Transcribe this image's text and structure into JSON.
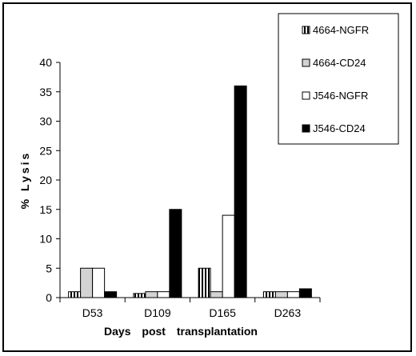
{
  "chart_data": {
    "type": "bar",
    "categories": [
      "D53",
      "D109",
      "D165",
      "D263"
    ],
    "series": [
      {
        "name": "4664-NGFR",
        "values": [
          1,
          0.7,
          5,
          1
        ],
        "style": "striped"
      },
      {
        "name": "4664-CD24",
        "values": [
          5,
          1,
          1,
          1
        ],
        "style": "lightgray"
      },
      {
        "name": "J546-NGFR",
        "values": [
          5,
          1,
          14,
          1
        ],
        "style": "white"
      },
      {
        "name": "J546-CD24",
        "values": [
          1,
          15,
          36,
          1.5
        ],
        "style": "black"
      }
    ],
    "xlabel": "Days post transplantation",
    "ylabel": "% Lysis",
    "ylim": [
      0,
      40
    ],
    "yticks": [
      0,
      5,
      10,
      15,
      20,
      25,
      30,
      35,
      40
    ],
    "grid": false,
    "legend_position": "top-right",
    "colors": {
      "black": "#000000",
      "lightgray": "#d3d3d3",
      "white": "#ffffff",
      "stripe": "#000000"
    }
  }
}
